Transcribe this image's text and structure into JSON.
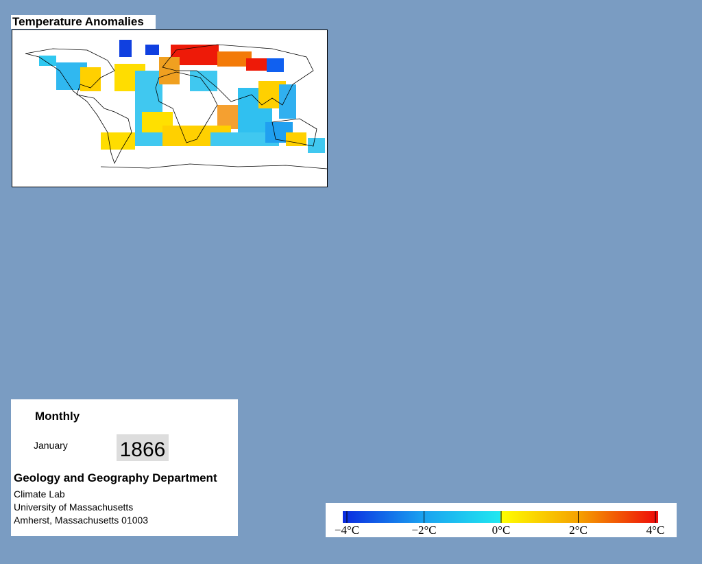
{
  "header": {
    "title": "Temperature Anomalies"
  },
  "info": {
    "period": "Monthly",
    "month": "January",
    "year": "1866",
    "department": "Geology and Geography Department",
    "address": [
      "Climate Lab",
      "University of Massachusetts",
      "Amherst, Massachusetts 01003"
    ]
  },
  "colorbar": {
    "ticks": [
      "−4°C",
      "−2°C",
      "0°C",
      "2°C",
      "4°C"
    ]
  }
}
